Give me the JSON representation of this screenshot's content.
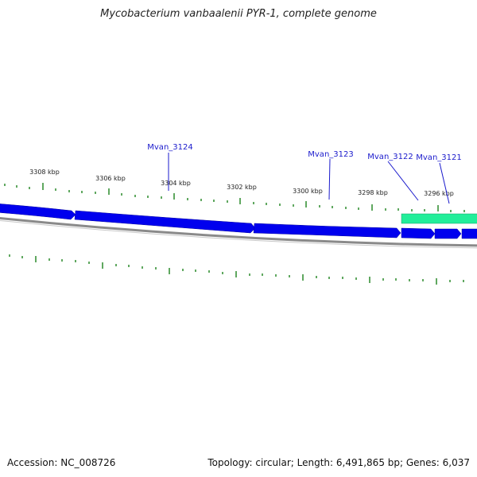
{
  "title": "Mycobacterium vanbaalenii PYR-1, complete genome",
  "footer": {
    "accession": "Accession: NC_008726",
    "stats": "Topology: circular; Length: 6,491,865 bp; Genes: 6,037"
  },
  "scale": {
    "labels": [
      "3308 kbp",
      "3306 kbp",
      "3304 kbp",
      "3302 kbp",
      "3300 kbp",
      "3298 kbp",
      "3296 kbp"
    ]
  },
  "genes": {
    "labels": [
      "Mvan_3124",
      "Mvan_3123",
      "Mvan_3122",
      "Mvan_3121"
    ]
  },
  "colors": {
    "gene_forward": "#0000ee",
    "gene_highlight": "#22ee99",
    "backbone": "#808080",
    "tick": "#2a8a2a",
    "gene_label": "#1a1acc"
  }
}
